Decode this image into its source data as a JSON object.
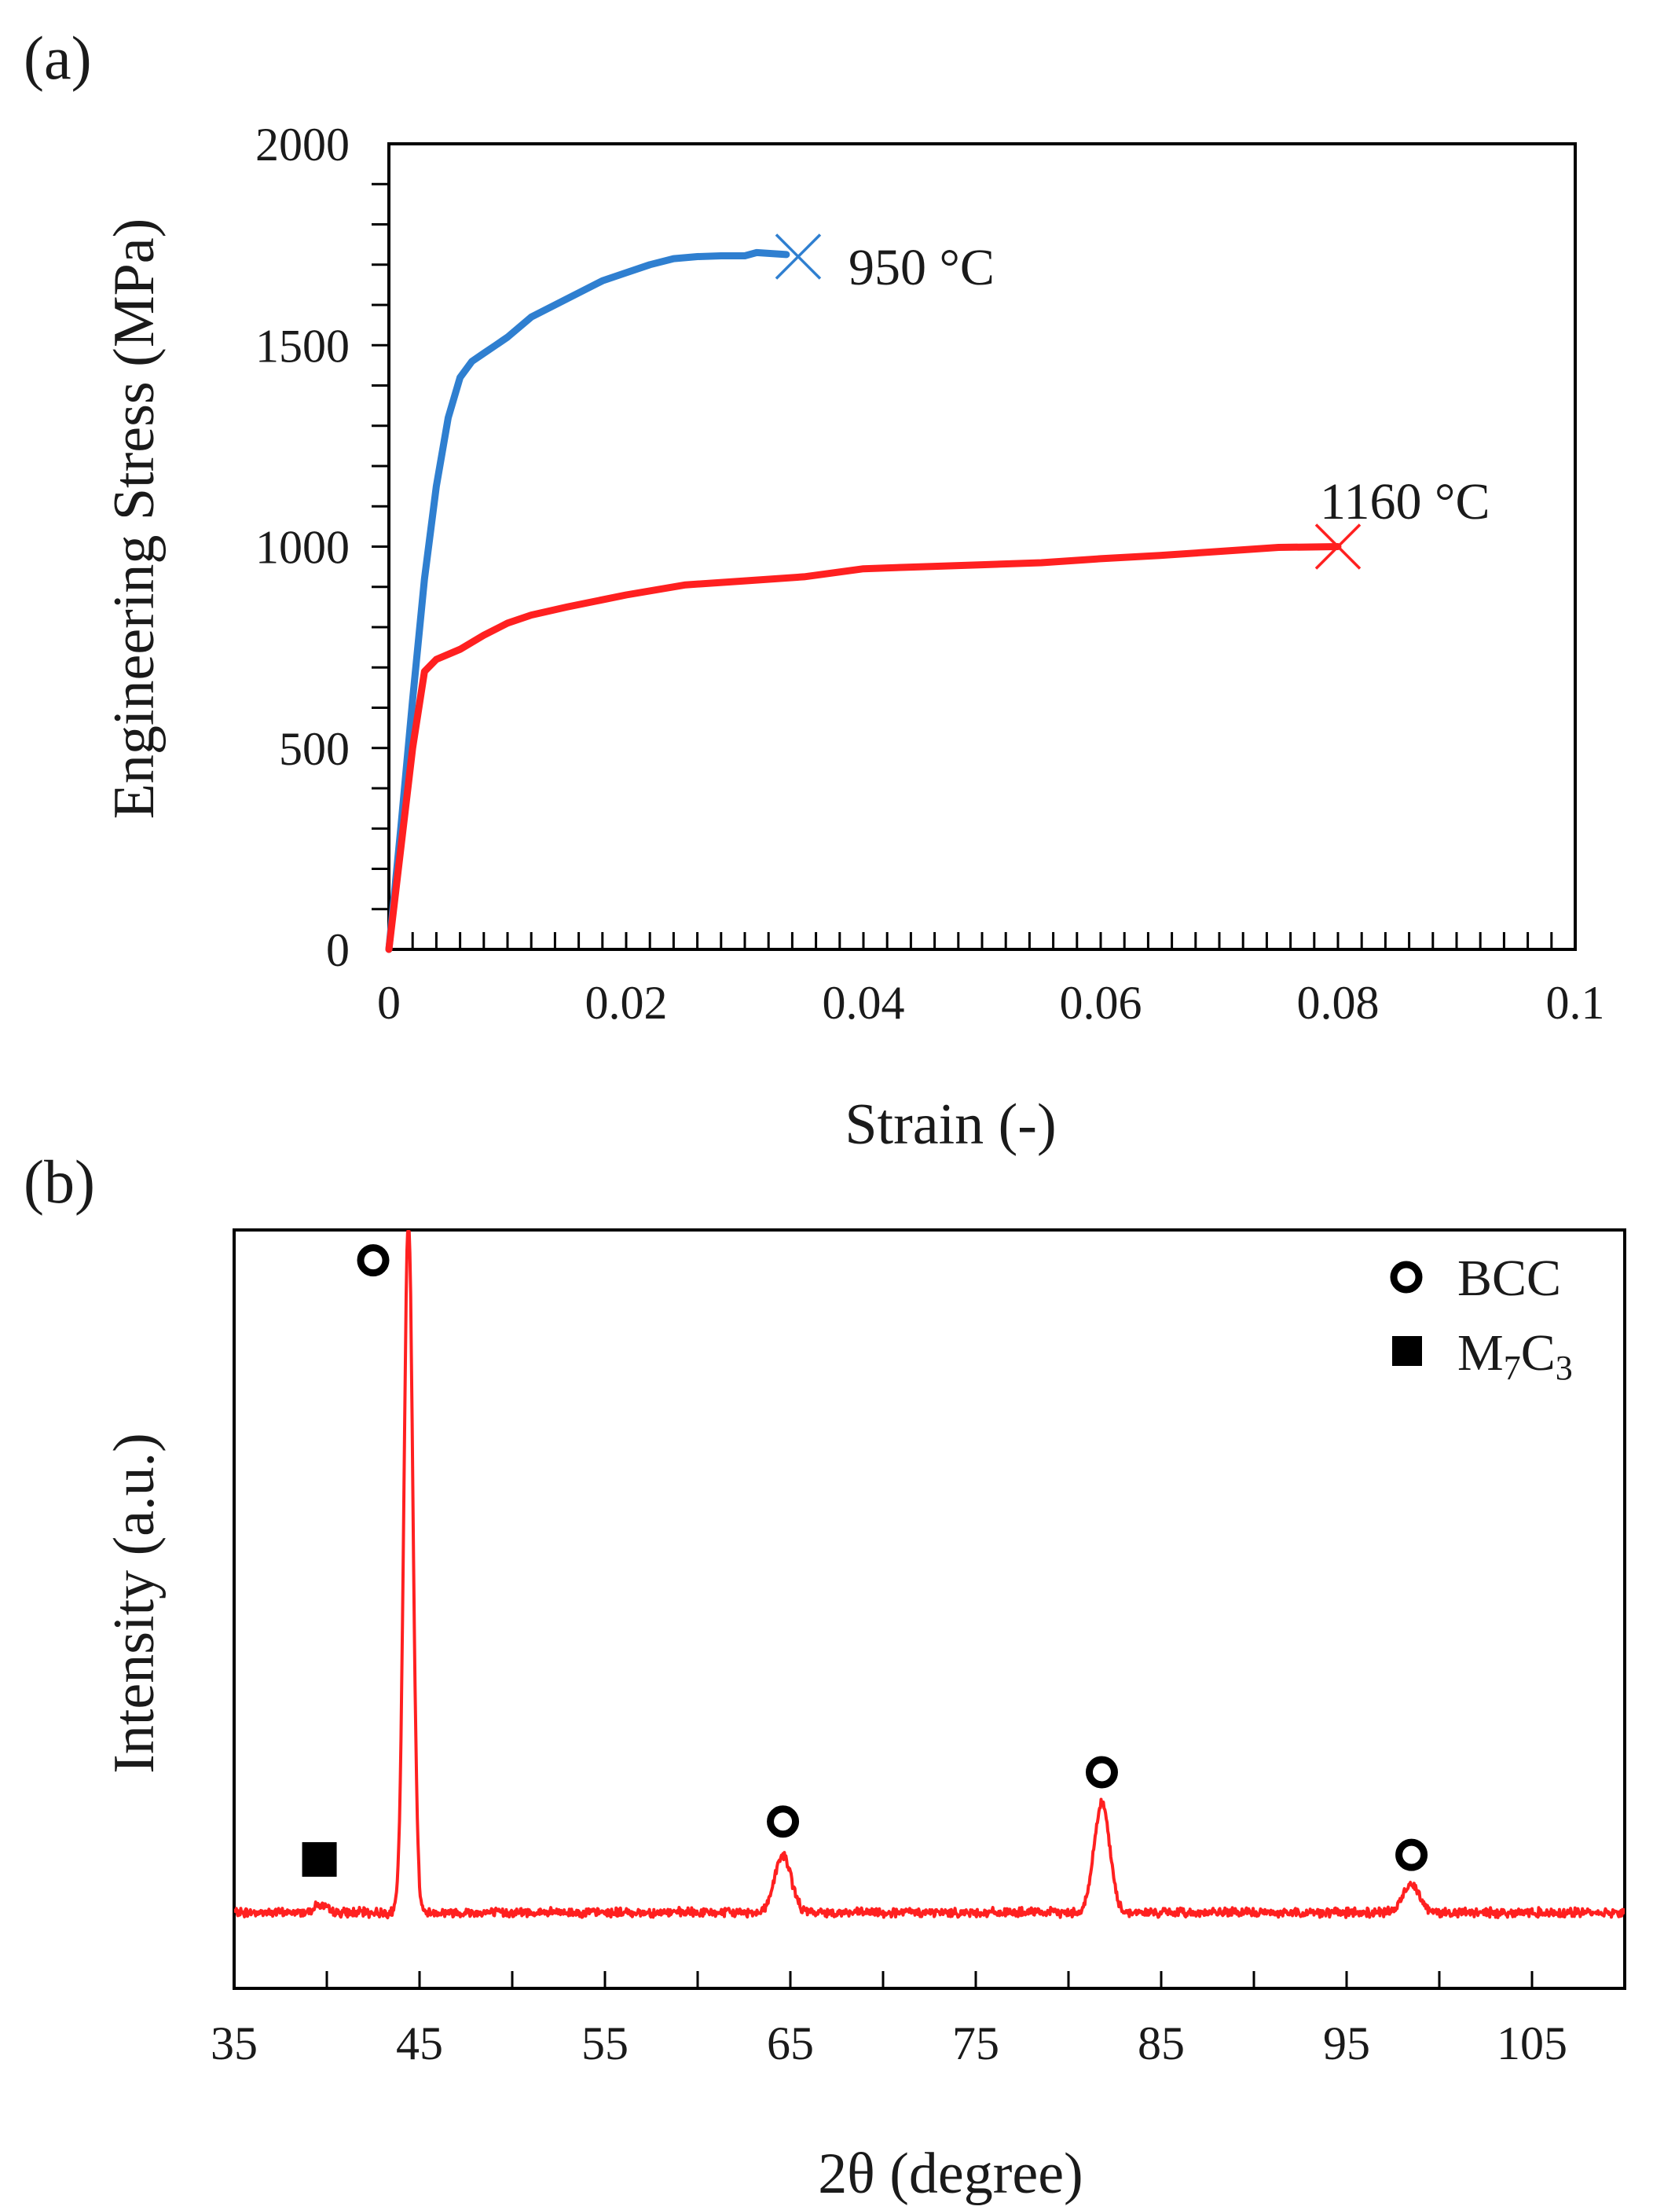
{
  "chart_data": [
    {
      "type": "line",
      "panel_label": "(a)",
      "xlabel": "Strain (-)",
      "ylabel": "Engineering Stress (MPa)",
      "xlim": [
        0,
        0.1
      ],
      "ylim": [
        0,
        2000
      ],
      "xticks": [
        0,
        0.02,
        0.04,
        0.06,
        0.08,
        0.1
      ],
      "xtick_labels": [
        "0",
        "0.02",
        "0.04",
        "0.06",
        "0.08",
        "0.1"
      ],
      "yticks": [
        0,
        500,
        1000,
        1500,
        2000
      ],
      "ytick_labels": [
        "0",
        "500",
        "1000",
        "1500",
        "2000"
      ],
      "grid": false,
      "series": [
        {
          "name": "950 °C",
          "label": "950 °C",
          "color": "#2f7fd0",
          "x": [
            0,
            0.001,
            0.002,
            0.003,
            0.004,
            0.005,
            0.006,
            0.007,
            0.008,
            0.009,
            0.01,
            0.012,
            0.014,
            0.016,
            0.018,
            0.02,
            0.022,
            0.024,
            0.026,
            0.028,
            0.03,
            0.031,
            0.032,
            0.0335
          ],
          "y": [
            0,
            300,
            620,
            920,
            1150,
            1320,
            1420,
            1460,
            1480,
            1500,
            1520,
            1570,
            1600,
            1630,
            1660,
            1680,
            1700,
            1715,
            1720,
            1722,
            1722,
            1730,
            1728,
            1725
          ],
          "fracture": {
            "x": 0.0345,
            "y": 1720
          }
        },
        {
          "name": "1160 °C",
          "label": "1160 °C",
          "color": "#ff2020",
          "x": [
            0,
            0.001,
            0.002,
            0.003,
            0.004,
            0.006,
            0.008,
            0.01,
            0.012,
            0.015,
            0.02,
            0.025,
            0.03,
            0.035,
            0.04,
            0.045,
            0.05,
            0.055,
            0.06,
            0.065,
            0.07,
            0.075,
            0.08
          ],
          "y": [
            0,
            250,
            500,
            690,
            720,
            745,
            780,
            810,
            830,
            850,
            880,
            905,
            915,
            925,
            945,
            950,
            955,
            960,
            970,
            978,
            988,
            998,
            1000
          ],
          "fracture": {
            "x": 0.08,
            "y": 1000
          }
        }
      ]
    },
    {
      "type": "line",
      "panel_label": "(b)",
      "xlabel": "2θ (degree)",
      "ylabel": "Intensity (a.u.)",
      "xlim": [
        35,
        110
      ],
      "ylim": [
        0,
        100
      ],
      "xticks": [
        35,
        45,
        55,
        65,
        75,
        85,
        95,
        105
      ],
      "xtick_labels": [
        "35",
        "45",
        "55",
        "65",
        "75",
        "85",
        "95",
        "105"
      ],
      "grid": false,
      "baseline": 10,
      "series": [
        {
          "name": "XRD pattern",
          "color": "#ff2020",
          "peaks": [
            {
              "x": 39.6,
              "height": 1.0,
              "width": 0.35
            },
            {
              "x": 44.4,
              "height": 92,
              "width": 0.24
            },
            {
              "x": 64.6,
              "height": 7.5,
              "width": 0.45
            },
            {
              "x": 81.8,
              "height": 14.5,
              "width": 0.42
            },
            {
              "x": 98.5,
              "height": 3.8,
              "width": 0.45
            }
          ]
        }
      ],
      "markers": [
        {
          "phase": "BCC",
          "symbol": "circle",
          "x": 42.5,
          "y": 96
        },
        {
          "phase": "BCC",
          "symbol": "circle",
          "x": 64.6,
          "y": 22
        },
        {
          "phase": "BCC",
          "symbol": "circle",
          "x": 81.8,
          "y": 28.5
        },
        {
          "phase": "BCC",
          "symbol": "circle",
          "x": 98.5,
          "y": 17.6
        },
        {
          "phase": "M7C3",
          "symbol": "square",
          "x": 39.6,
          "y": 17
        }
      ],
      "legend": {
        "position": "top-right",
        "entries": [
          {
            "symbol": "circle",
            "label": "BCC"
          },
          {
            "symbol": "square",
            "label_main": "M",
            "sub1": "7",
            "label_mid": "C",
            "sub2": "3"
          }
        ]
      }
    }
  ]
}
